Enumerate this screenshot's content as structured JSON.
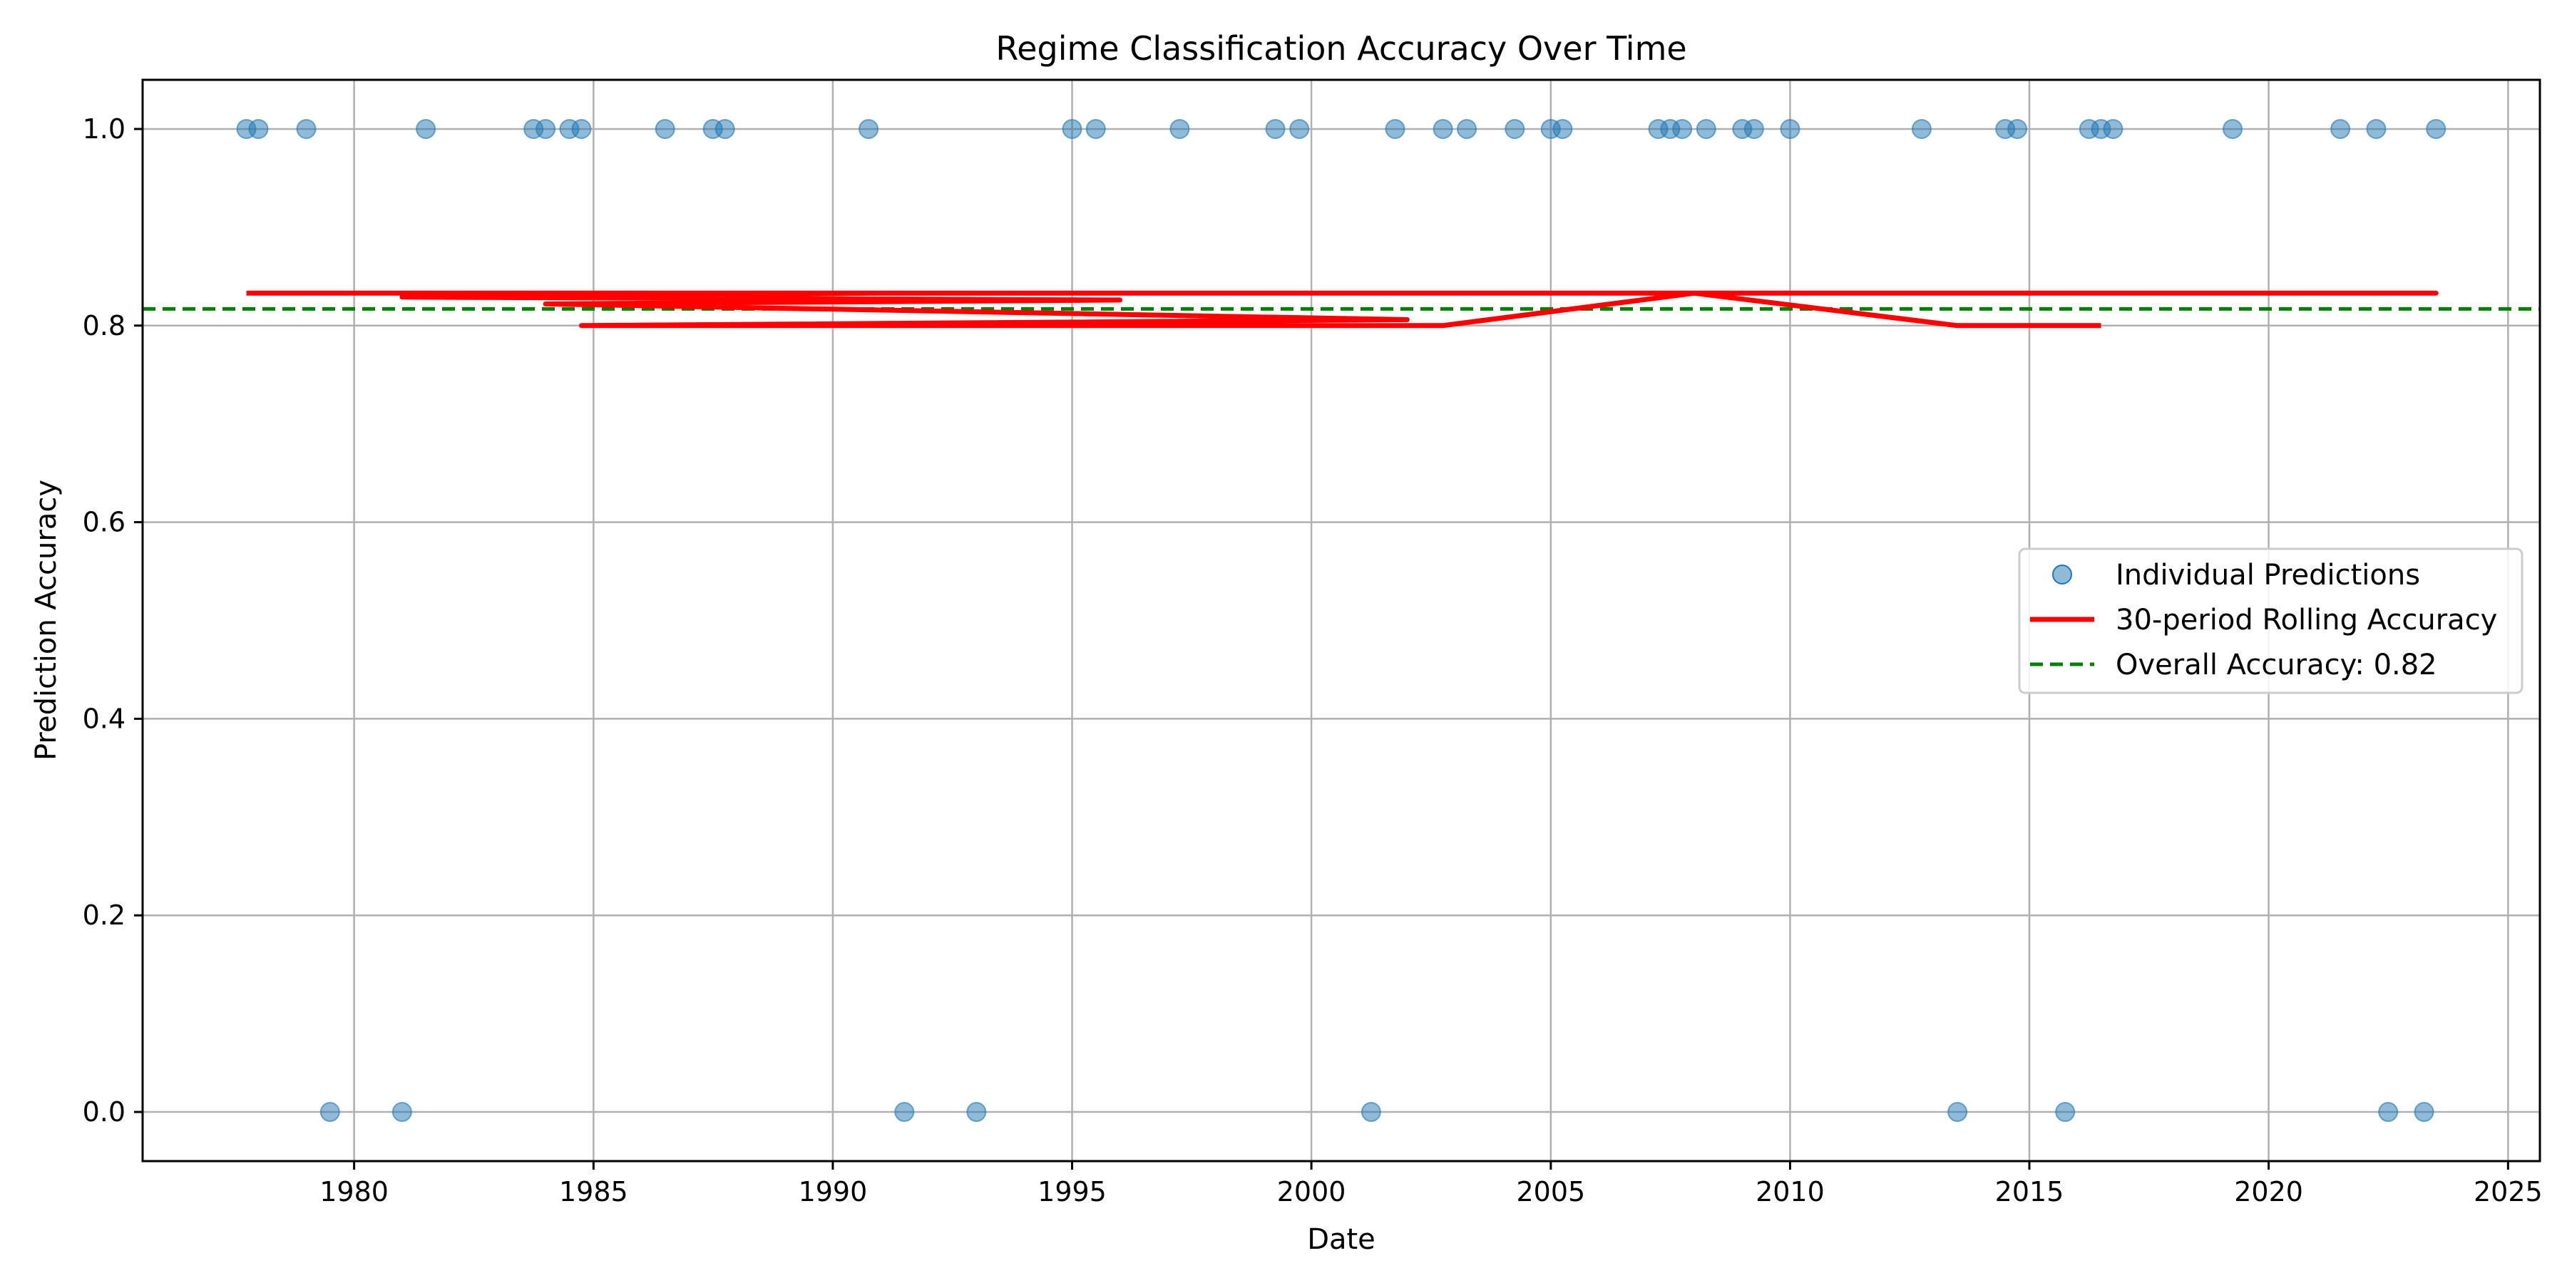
{
  "chart_data": {
    "type": "scatter",
    "title": "Regime Classification Accuracy Over Time",
    "xlabel": "Date",
    "ylabel": "Prediction Accuracy",
    "xlim": [
      "1975-08-01",
      "2025-09-01"
    ],
    "ylim": [
      -0.05,
      1.05
    ],
    "x_ticks": [
      "1980",
      "1985",
      "1990",
      "1995",
      "2000",
      "2005",
      "2010",
      "2015",
      "2020",
      "2025"
    ],
    "y_ticks": [
      "0.0",
      "0.2",
      "0.4",
      "0.6",
      "0.8",
      "1.0"
    ],
    "grid": true,
    "legend_position": "center-right",
    "series": [
      {
        "name": "Individual Predictions",
        "kind": "scatter",
        "color": "#1f77b4",
        "points": [
          {
            "x": "1977-10-01",
            "y": 1.0
          },
          {
            "x": "1978-01-01",
            "y": 1.0
          },
          {
            "x": "1979-01-01",
            "y": 1.0
          },
          {
            "x": "1979-07-01",
            "y": 0.0
          },
          {
            "x": "1981-01-01",
            "y": 0.0
          },
          {
            "x": "1981-07-01",
            "y": 1.0
          },
          {
            "x": "1983-10-01",
            "y": 1.0
          },
          {
            "x": "1984-01-01",
            "y": 1.0
          },
          {
            "x": "1984-07-01",
            "y": 1.0
          },
          {
            "x": "1984-10-01",
            "y": 1.0
          },
          {
            "x": "1986-07-01",
            "y": 1.0
          },
          {
            "x": "1987-07-01",
            "y": 1.0
          },
          {
            "x": "1987-10-01",
            "y": 1.0
          },
          {
            "x": "1990-10-01",
            "y": 1.0
          },
          {
            "x": "1991-07-01",
            "y": 0.0
          },
          {
            "x": "1993-01-01",
            "y": 0.0
          },
          {
            "x": "1995-01-01",
            "y": 1.0
          },
          {
            "x": "1995-07-01",
            "y": 1.0
          },
          {
            "x": "1997-04-01",
            "y": 1.0
          },
          {
            "x": "1999-04-01",
            "y": 1.0
          },
          {
            "x": "1999-10-01",
            "y": 1.0
          },
          {
            "x": "2001-04-01",
            "y": 0.0
          },
          {
            "x": "2001-10-01",
            "y": 1.0
          },
          {
            "x": "2002-10-01",
            "y": 1.0
          },
          {
            "x": "2003-04-01",
            "y": 1.0
          },
          {
            "x": "2004-04-01",
            "y": 1.0
          },
          {
            "x": "2005-01-01",
            "y": 1.0
          },
          {
            "x": "2005-04-01",
            "y": 1.0
          },
          {
            "x": "2007-04-01",
            "y": 1.0
          },
          {
            "x": "2007-07-01",
            "y": 1.0
          },
          {
            "x": "2007-10-01",
            "y": 1.0
          },
          {
            "x": "2008-04-01",
            "y": 1.0
          },
          {
            "x": "2009-01-01",
            "y": 1.0
          },
          {
            "x": "2009-04-01",
            "y": 1.0
          },
          {
            "x": "2010-01-01",
            "y": 1.0
          },
          {
            "x": "2012-10-01",
            "y": 1.0
          },
          {
            "x": "2013-07-01",
            "y": 0.0
          },
          {
            "x": "2014-07-01",
            "y": 1.0
          },
          {
            "x": "2014-10-01",
            "y": 1.0
          },
          {
            "x": "2015-10-01",
            "y": 0.0
          },
          {
            "x": "2016-04-01",
            "y": 1.0
          },
          {
            "x": "2016-07-01",
            "y": 1.0
          },
          {
            "x": "2016-10-01",
            "y": 1.0
          },
          {
            "x": "2019-04-01",
            "y": 1.0
          },
          {
            "x": "2021-07-01",
            "y": 1.0
          },
          {
            "x": "2022-04-01",
            "y": 1.0
          },
          {
            "x": "2022-07-01",
            "y": 0.0
          },
          {
            "x": "2023-04-01",
            "y": 0.0
          },
          {
            "x": "2023-07-01",
            "y": 1.0
          }
        ]
      },
      {
        "name": "30-period Rolling Accuracy",
        "kind": "line",
        "color": "#ff0000",
        "points": [
          {
            "x": "1977-10-01",
            "y": 0.833
          },
          {
            "x": "1991-01-01",
            "y": 0.833
          },
          {
            "x": "1981-01-01",
            "y": 0.829
          },
          {
            "x": "1996-01-01",
            "y": 0.826
          },
          {
            "x": "1984-01-01",
            "y": 0.822
          },
          {
            "x": "2002-01-01",
            "y": 0.806
          },
          {
            "x": "1984-10-01",
            "y": 0.8
          },
          {
            "x": "2002-10-01",
            "y": 0.8
          },
          {
            "x": "2008-01-01",
            "y": 0.833
          },
          {
            "x": "1986-01-01",
            "y": 0.833
          },
          {
            "x": "2023-07-01",
            "y": 0.833
          },
          {
            "x": "2008-01-01",
            "y": 0.833
          },
          {
            "x": "2013-07-01",
            "y": 0.8
          },
          {
            "x": "2016-07-01",
            "y": 0.8
          }
        ]
      },
      {
        "name": "Overall Accuracy: 0.82",
        "kind": "hline",
        "color": "#008000",
        "y": 0.817
      }
    ]
  }
}
